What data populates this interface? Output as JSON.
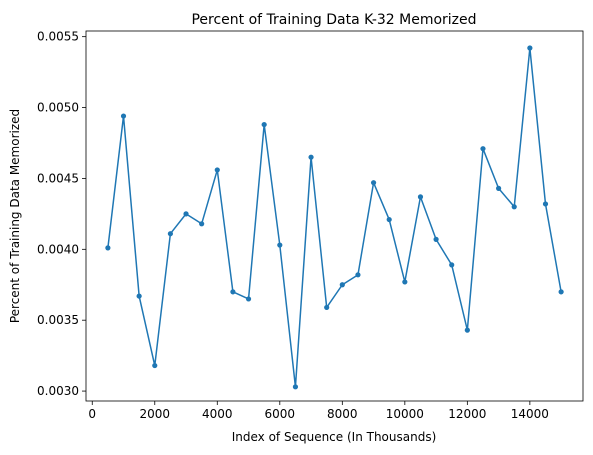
{
  "chart_data": {
    "type": "line",
    "title": "Percent of Training Data K-32 Memorized",
    "xlabel": "Index of Sequence (In Thousands)",
    "ylabel": "Percent of Training Data Memorized",
    "xlim": [
      -200,
      15700
    ],
    "ylim": [
      0.00293,
      0.00554
    ],
    "x_ticks": [
      0,
      2000,
      4000,
      6000,
      8000,
      10000,
      12000,
      14000
    ],
    "y_ticks": [
      0.003,
      0.0035,
      0.004,
      0.0045,
      0.005,
      0.0055
    ],
    "x_tick_labels": [
      "0",
      "2000",
      "4000",
      "6000",
      "8000",
      "10000",
      "12000",
      "14000"
    ],
    "y_tick_labels": [
      "0.0030",
      "0.0035",
      "0.0040",
      "0.0045",
      "0.0050",
      "0.0055"
    ],
    "grid": false,
    "color": "#1f77b4",
    "series": [
      {
        "x": [
          500,
          1000,
          1500,
          2000,
          2500,
          3000,
          3500,
          4000,
          4500,
          5000,
          5500,
          6000,
          6500,
          7000,
          7500,
          8000,
          8500,
          9000,
          9500,
          10000,
          10500,
          11000,
          11500,
          12000,
          12500,
          13000,
          13500,
          14000,
          14500,
          15000
        ],
        "values": [
          0.00401,
          0.00494,
          0.00367,
          0.00318,
          0.00411,
          0.00425,
          0.00418,
          0.00456,
          0.0037,
          0.00365,
          0.00488,
          0.00403,
          0.00303,
          0.00465,
          0.00359,
          0.00375,
          0.00382,
          0.00447,
          0.00421,
          0.00377,
          0.00437,
          0.00407,
          0.00389,
          0.00343,
          0.00471,
          0.00443,
          0.0043,
          0.00542,
          0.00432,
          0.0037
        ]
      }
    ]
  }
}
